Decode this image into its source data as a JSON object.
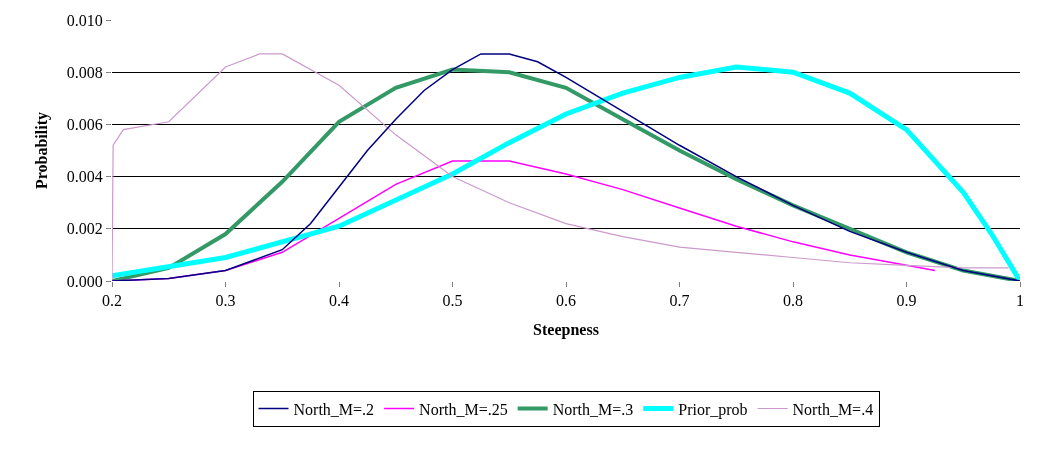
{
  "chart_data": {
    "type": "line",
    "xlabel": "Steepness",
    "ylabel": "Probability",
    "xlim": [
      0.2,
      1
    ],
    "xticks": [
      0.2,
      0.3,
      0.4,
      0.5,
      0.6,
      0.7,
      0.8,
      0.9,
      1
    ],
    "ylim": [
      0,
      0.01
    ],
    "yticks": [
      {
        "value": 0,
        "label": "0.000"
      },
      {
        "value": 0.002,
        "label": "0.002"
      },
      {
        "value": 0.004,
        "label": "0.004"
      },
      {
        "value": 0.006,
        "label": "0.006"
      },
      {
        "value": 0.008,
        "label": "0.008"
      },
      {
        "value": 0.01,
        "label": "0.010"
      }
    ],
    "grid": "y",
    "legend": "bottom",
    "marker": "none",
    "line_style": "solid",
    "series": [
      {
        "name": "North_M=.2",
        "color": "#000080",
        "x": [
          0.2,
          0.25,
          0.3,
          0.35,
          0.375,
          0.4,
          0.425,
          0.45,
          0.475,
          0.5,
          0.525,
          0.55,
          0.575,
          0.6,
          0.65,
          0.7,
          0.75,
          0.8,
          0.85,
          0.9,
          0.95,
          1.0
        ],
        "values": [
          0,
          0.0001,
          0.0004,
          0.0012,
          0.0022,
          0.0036,
          0.005,
          0.0062,
          0.0073,
          0.0081,
          0.0087,
          0.0087,
          0.0084,
          0.0078,
          0.0065,
          0.0052,
          0.004,
          0.0029,
          0.0019,
          0.0011,
          0.0004,
          0
        ]
      },
      {
        "name": "North_M=.25",
        "color": "#ff00ff",
        "x": [
          0.2,
          0.25,
          0.3,
          0.35,
          0.4,
          0.45,
          0.5,
          0.55,
          0.6,
          0.65,
          0.7,
          0.75,
          0.8,
          0.85,
          0.9,
          0.925
        ],
        "values": [
          0,
          0.0001,
          0.0004,
          0.0011,
          0.0024,
          0.0037,
          0.0046,
          0.0046,
          0.0041,
          0.0035,
          0.0028,
          0.0021,
          0.0015,
          0.001,
          0.0006,
          0.0004
        ]
      },
      {
        "name": "North_M=.3",
        "color": "#339966",
        "x": [
          0.2,
          0.25,
          0.3,
          0.35,
          0.4,
          0.45,
          0.5,
          0.55,
          0.6,
          0.65,
          0.7,
          0.75,
          0.8,
          0.85,
          0.9,
          0.95,
          1.0
        ],
        "values": [
          0,
          0.0005,
          0.0018,
          0.0038,
          0.0061,
          0.0074,
          0.0081,
          0.008,
          0.0074,
          0.0062,
          0.005,
          0.0039,
          0.0029,
          0.002,
          0.0011,
          0.0004,
          0
        ]
      },
      {
        "name": "Prior_prob",
        "color": "#00ffff",
        "x": [
          0.2,
          0.3,
          0.4,
          0.5,
          0.55,
          0.6,
          0.65,
          0.7,
          0.75,
          0.8,
          0.85,
          0.9,
          0.95,
          0.975,
          1.0
        ],
        "values": [
          0.0002,
          0.0009,
          0.0021,
          0.0041,
          0.0053,
          0.0064,
          0.0072,
          0.0078,
          0.0082,
          0.008,
          0.0072,
          0.0058,
          0.0034,
          0.0018,
          0
        ]
      },
      {
        "name": "North_M=.4",
        "color": "#cc99cc",
        "x": [
          0.2,
          0.201,
          0.21,
          0.25,
          0.3,
          0.33,
          0.35,
          0.4,
          0.45,
          0.5,
          0.55,
          0.6,
          0.65,
          0.7,
          0.75,
          0.8,
          0.85,
          0.9,
          0.95,
          0.99
        ],
        "values": [
          0,
          0.0052,
          0.0058,
          0.0061,
          0.0082,
          0.0087,
          0.0087,
          0.0075,
          0.0056,
          0.004,
          0.003,
          0.0022,
          0.0017,
          0.0013,
          0.0011,
          0.0009,
          0.0007,
          0.0006,
          0.0005,
          0.0005
        ]
      }
    ]
  }
}
